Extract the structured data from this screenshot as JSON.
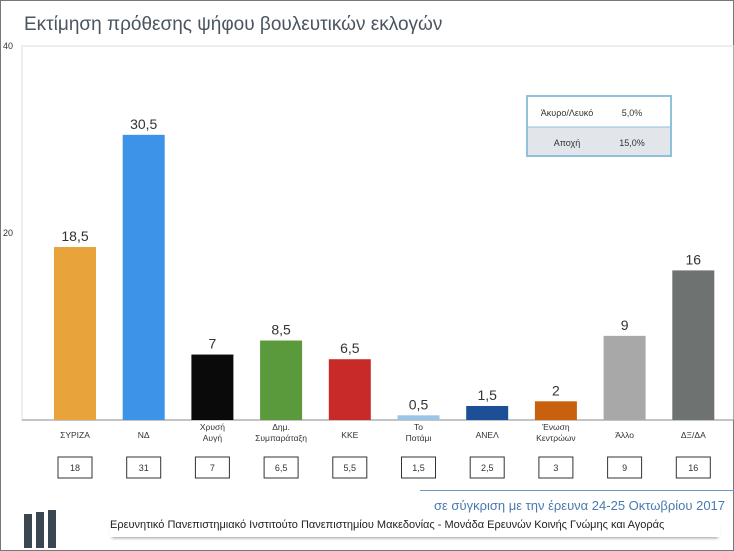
{
  "chart_data": {
    "type": "bar",
    "title": "Εκτίμηση πρόθεσης ψήφου βουλευτικών εκλογών",
    "categories": [
      "ΣΥΡΙΖΑ",
      "ΝΔ",
      "Χρυσή Αυγή",
      "Δημ. Συμπαράταξη",
      "ΚΚΕ",
      "Το Ποτάμι",
      "ΑΝΕΛ",
      "Ένωση Κεντρώων",
      "Άλλο",
      "ΔΞ/ΔΑ"
    ],
    "values": [
      18.5,
      30.5,
      7,
      8.5,
      6.5,
      0.5,
      1.5,
      2,
      9,
      16
    ],
    "value_labels": [
      "18,5",
      "30,5",
      "7",
      "8,5",
      "6,5",
      "0,5",
      "1,5",
      "2",
      "9",
      "16"
    ],
    "previous_values": [
      "18",
      "31",
      "7",
      "6,5",
      "5,5",
      "1,5",
      "2,5",
      "3",
      "9",
      "16"
    ],
    "colors": [
      "#e8a33a",
      "#3d93e8",
      "#0a0a0a",
      "#5a9a3c",
      "#c82a2a",
      "#9cc4e4",
      "#1d4f96",
      "#c8600e",
      "#a8a8a8",
      "#6e7270"
    ],
    "ylim": [
      0,
      40
    ],
    "yticks": [
      "0",
      "20",
      "40"
    ],
    "grid": false
  },
  "side_table": [
    {
      "label": "Άκυρο/Λευκό",
      "value": "5,0%"
    },
    {
      "label": "Αποχή",
      "value": "15,0%"
    }
  ],
  "note": "σε σύγκριση με την έρευνα 24-25 Οκτωβρίου 2017",
  "footer": "Ερευνητικό Πανεπιστημιακό Ινστιτούτο Πανεπιστημίου Μακεδονίας - Μονάδα Ερευνών Κοινής Γνώμης και Αγοράς"
}
